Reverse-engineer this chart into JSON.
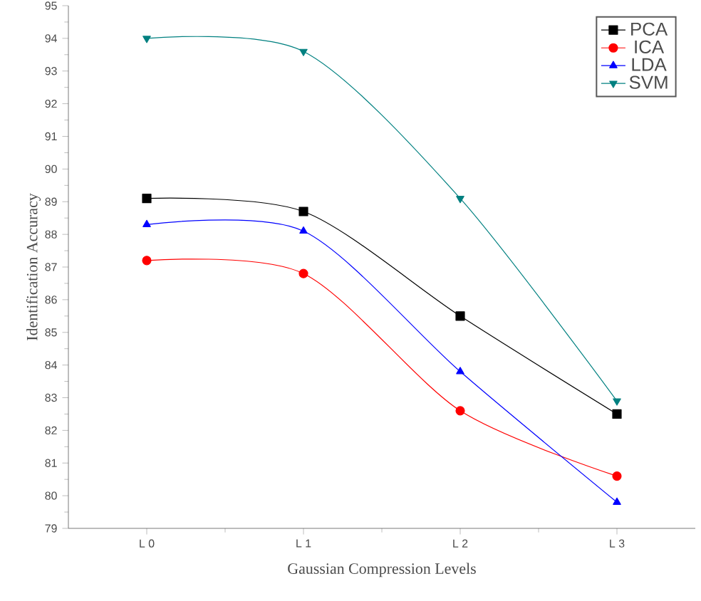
{
  "chart_data": {
    "type": "line",
    "xlabel": "Gaussian Compression Levels",
    "ylabel": "Identification Accuracy",
    "categories": [
      "L 0",
      "L 1",
      "L 2",
      "L 3"
    ],
    "series": [
      {
        "name": "PCA",
        "color": "#000000",
        "marker": "square",
        "values": [
          89.1,
          88.7,
          85.5,
          82.5
        ]
      },
      {
        "name": "ICA",
        "color": "#ff0000",
        "marker": "circle",
        "values": [
          87.2,
          86.8,
          82.6,
          80.6
        ]
      },
      {
        "name": "LDA",
        "color": "#0000ff",
        "marker": "triangle",
        "values": [
          88.3,
          88.1,
          83.8,
          79.8
        ]
      },
      {
        "name": "SVM",
        "color": "#008080",
        "marker": "triangle-down",
        "values": [
          94.0,
          93.6,
          89.1,
          82.9
        ]
      }
    ],
    "ylim": [
      79,
      95
    ],
    "yticks": [
      79,
      80,
      81,
      82,
      83,
      84,
      85,
      86,
      87,
      88,
      89,
      90,
      91,
      92,
      93,
      94,
      95
    ],
    "legend": "top right",
    "grid": false
  }
}
